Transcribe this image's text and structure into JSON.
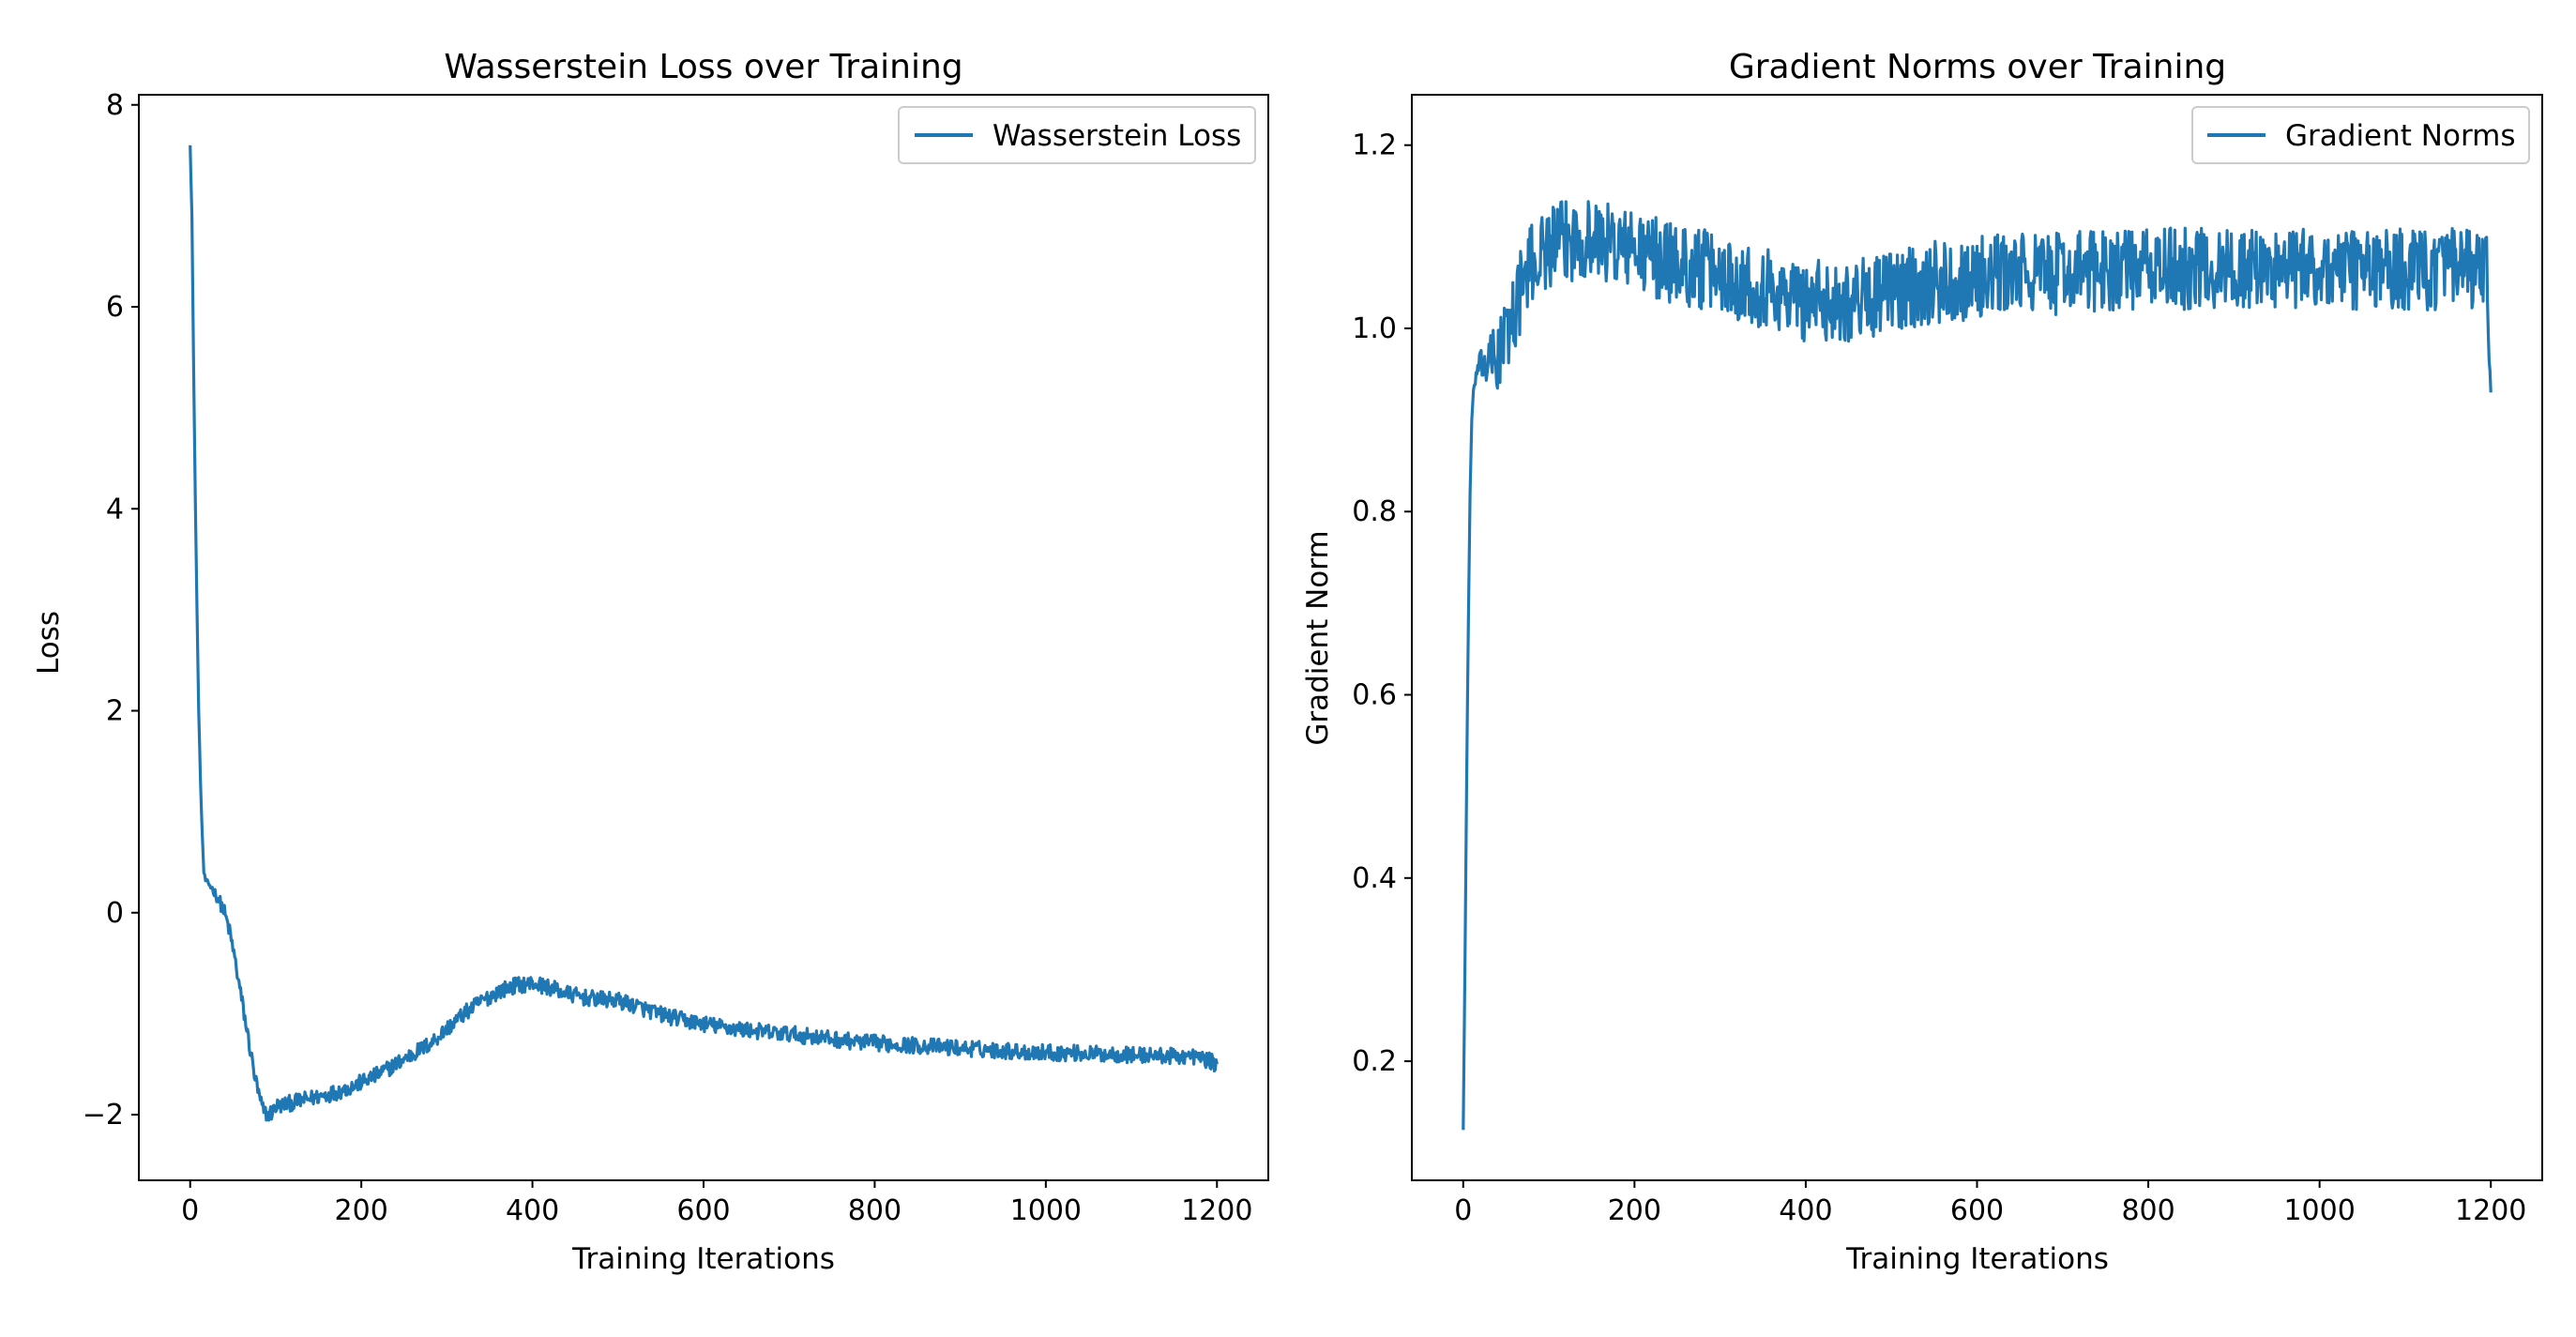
{
  "chart_data": [
    {
      "type": "line",
      "title": "Wasserstein Loss over Training",
      "xlabel": "Training Iterations",
      "ylabel": "Loss",
      "xlim": [
        -60,
        1260
      ],
      "ylim": [
        -2.65,
        8.1
      ],
      "xticks": [
        0,
        200,
        400,
        600,
        800,
        1000,
        1200
      ],
      "yticks": [
        -2,
        0,
        2,
        4,
        6,
        8
      ],
      "xtick_labels": [
        "0",
        "200",
        "400",
        "600",
        "800",
        "1000",
        "1200"
      ],
      "ytick_labels": [
        "−2",
        "0",
        "2",
        "4",
        "6",
        "8"
      ],
      "grid": false,
      "legend_position": "top-right",
      "series": [
        {
          "name": "Wasserstein Loss",
          "color": "#1f77b4",
          "x": [
            0,
            2,
            4,
            6,
            8,
            10,
            12,
            14,
            16,
            18,
            20,
            25,
            30,
            35,
            40,
            45,
            50,
            55,
            60,
            65,
            70,
            75,
            80,
            85,
            90,
            95,
            100,
            110,
            120,
            130,
            140,
            150,
            160,
            170,
            180,
            190,
            200,
            220,
            240,
            260,
            280,
            300,
            320,
            340,
            360,
            380,
            400,
            420,
            440,
            460,
            480,
            500,
            520,
            540,
            560,
            580,
            600,
            620,
            640,
            660,
            680,
            700,
            720,
            740,
            760,
            780,
            800,
            820,
            840,
            860,
            880,
            900,
            920,
            940,
            960,
            980,
            1000,
            1020,
            1040,
            1060,
            1080,
            1100,
            1120,
            1140,
            1160,
            1180,
            1200
          ],
          "y": [
            7.6,
            6.9,
            5.4,
            4.1,
            3.0,
            2.0,
            1.3,
            0.8,
            0.4,
            0.32,
            0.3,
            0.25,
            0.18,
            0.1,
            0.0,
            -0.15,
            -0.35,
            -0.6,
            -0.85,
            -1.1,
            -1.35,
            -1.6,
            -1.8,
            -1.95,
            -2.0,
            -1.98,
            -1.92,
            -1.9,
            -1.88,
            -1.86,
            -1.84,
            -1.82,
            -1.8,
            -1.78,
            -1.75,
            -1.72,
            -1.68,
            -1.6,
            -1.5,
            -1.4,
            -1.3,
            -1.15,
            -1.0,
            -0.88,
            -0.78,
            -0.72,
            -0.7,
            -0.74,
            -0.8,
            -0.84,
            -0.86,
            -0.87,
            -0.92,
            -0.98,
            -1.03,
            -1.07,
            -1.1,
            -1.13,
            -1.15,
            -1.17,
            -1.19,
            -1.2,
            -1.22,
            -1.24,
            -1.26,
            -1.28,
            -1.29,
            -1.3,
            -1.31,
            -1.32,
            -1.33,
            -1.34,
            -1.35,
            -1.36,
            -1.37,
            -1.38,
            -1.38,
            -1.39,
            -1.39,
            -1.4,
            -1.4,
            -1.41,
            -1.41,
            -1.42,
            -1.42,
            -1.43,
            -1.5
          ],
          "noise_amplitude": 0.08
        }
      ]
    },
    {
      "type": "line",
      "title": "Gradient Norms over Training",
      "xlabel": "Training Iterations",
      "ylabel": "Gradient Norm",
      "xlim": [
        -60,
        1260
      ],
      "ylim": [
        0.07,
        1.255
      ],
      "xticks": [
        0,
        200,
        400,
        600,
        800,
        1000,
        1200
      ],
      "yticks": [
        0.2,
        0.4,
        0.6,
        0.8,
        1.0,
        1.2
      ],
      "xtick_labels": [
        "0",
        "200",
        "400",
        "600",
        "800",
        "1000",
        "1200"
      ],
      "ytick_labels": [
        "0.2",
        "0.4",
        "0.6",
        "0.8",
        "1.0",
        "1.2"
      ],
      "grid": false,
      "legend_position": "top-right",
      "series": [
        {
          "name": "Gradient Norms",
          "color": "#1f77b4",
          "x": [
            0,
            2,
            4,
            6,
            8,
            10,
            12,
            15,
            20,
            30,
            40,
            50,
            60,
            70,
            80,
            90,
            100,
            120,
            140,
            160,
            180,
            200,
            250,
            300,
            350,
            400,
            450,
            500,
            550,
            600,
            650,
            700,
            750,
            800,
            850,
            900,
            950,
            1000,
            1050,
            1100,
            1150,
            1195,
            1200
          ],
          "y": [
            0.125,
            0.3,
            0.5,
            0.68,
            0.82,
            0.9,
            0.93,
            0.95,
            0.96,
            0.96,
            0.97,
            0.99,
            1.02,
            1.05,
            1.07,
            1.08,
            1.09,
            1.095,
            1.1,
            1.095,
            1.09,
            1.085,
            1.07,
            1.06,
            1.045,
            1.03,
            1.03,
            1.04,
            1.05,
            1.055,
            1.06,
            1.06,
            1.065,
            1.065,
            1.065,
            1.065,
            1.065,
            1.065,
            1.065,
            1.065,
            1.065,
            1.06,
            0.93
          ],
          "noise_amplitude": 0.045
        }
      ]
    }
  ]
}
